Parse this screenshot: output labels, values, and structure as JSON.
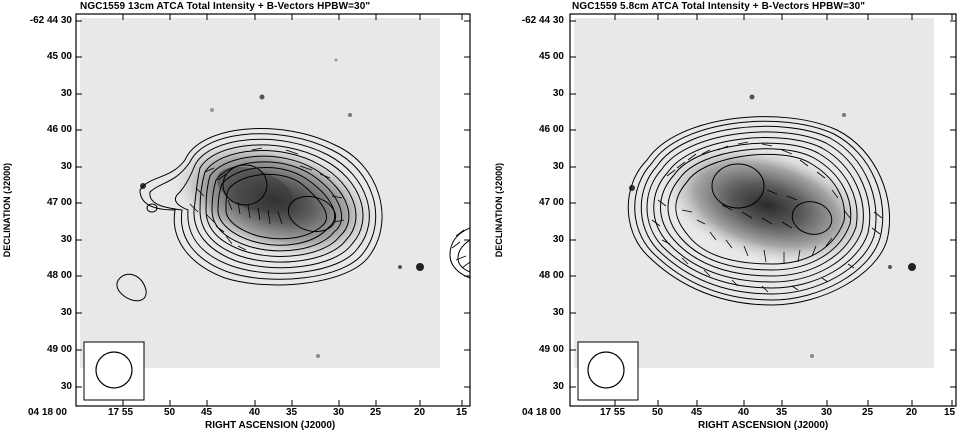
{
  "figure": {
    "panels": [
      {
        "id": "left",
        "title": "NGC1559   13cm   ATCA   Total Intensity + B-Vectors   HPBW=30\"",
        "xlabel": "RIGHT ASCENSION (J2000)",
        "ylabel": "DECLINATION (J2000)",
        "yticks": [
          "-62 44 30",
          "45 00",
          "30",
          "46 00",
          "30",
          "47 00",
          "30",
          "48 00",
          "30",
          "49 00",
          "30"
        ],
        "xticks": [
          "04 18 00",
          "17 55",
          "50",
          "45",
          "40",
          "35",
          "30",
          "25",
          "20",
          "15"
        ]
      },
      {
        "id": "right",
        "title": "NGC1559   5.8cm   ATCA   Total Intensity + B-Vectors   HPBW=30\"",
        "xlabel": "RIGHT ASCENSION (J2000)",
        "ylabel": "DECLINATION (J2000)",
        "yticks": [
          "-62 44 30",
          "45 00",
          "30",
          "46 00",
          "30",
          "47 00",
          "30",
          "48 00",
          "30",
          "49 00",
          "30"
        ],
        "xticks": [
          "04 18 00",
          "17 55",
          "50",
          "45",
          "40",
          "35",
          "30",
          "25",
          "20",
          "15"
        ]
      }
    ]
  }
}
